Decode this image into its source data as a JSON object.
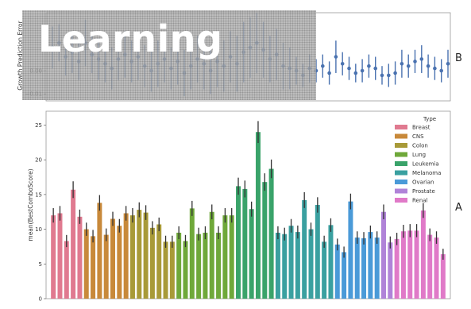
{
  "watermark": {
    "text": "Learning"
  },
  "chart_data": [
    {
      "panel": "B",
      "type": "scatter",
      "ylabel": "Growth Prediction Error",
      "ylim": [
        -0.013,
        0.025
      ],
      "yticks": [
        0.0,
        -0.01
      ],
      "ytick_labels": [
        "0.00",
        "−0.01"
      ],
      "color": "#4a72b0",
      "points": [
        {
          "y": 0.01,
          "err": 0.009
        },
        {
          "y": 0.012,
          "err": 0.008
        },
        {
          "y": 0.006,
          "err": 0.008
        },
        {
          "y": 0.008,
          "err": 0.009
        },
        {
          "y": 0.004,
          "err": 0.008
        },
        {
          "y": 0.012,
          "err": 0.01
        },
        {
          "y": 0.007,
          "err": 0.008
        },
        {
          "y": 0.005,
          "err": 0.009
        },
        {
          "y": 0.003,
          "err": 0.008
        },
        {
          "y": 0.001,
          "err": 0.009
        },
        {
          "y": 0.005,
          "err": 0.009
        },
        {
          "y": 0.007,
          "err": 0.01
        },
        {
          "y": 0.004,
          "err": 0.009
        },
        {
          "y": 0.006,
          "err": 0.01
        },
        {
          "y": 0.002,
          "err": 0.009
        },
        {
          "y": 0.0,
          "err": 0.009
        },
        {
          "y": 0.003,
          "err": 0.01
        },
        {
          "y": 0.005,
          "err": 0.01
        },
        {
          "y": 0.001,
          "err": 0.009
        },
        {
          "y": 0.004,
          "err": 0.01
        },
        {
          "y": -0.001,
          "err": 0.01
        },
        {
          "y": 0.002,
          "err": 0.01
        },
        {
          "y": 0.005,
          "err": 0.01
        },
        {
          "y": 0.003,
          "err": 0.011
        },
        {
          "y": 0.0,
          "err": 0.01
        },
        {
          "y": 0.004,
          "err": 0.011
        },
        {
          "y": 0.002,
          "err": 0.011
        },
        {
          "y": 0.006,
          "err": 0.011
        },
        {
          "y": 0.003,
          "err": 0.012
        },
        {
          "y": 0.008,
          "err": 0.013
        },
        {
          "y": 0.01,
          "err": 0.013
        },
        {
          "y": 0.012,
          "err": 0.013
        },
        {
          "y": 0.009,
          "err": 0.012
        },
        {
          "y": 0.005,
          "err": 0.01
        },
        {
          "y": 0.007,
          "err": 0.011
        },
        {
          "y": 0.002,
          "err": 0.01
        },
        {
          "y": 0.001,
          "err": 0.009
        },
        {
          "y": 0.0,
          "err": 0.006
        },
        {
          "y": -0.002,
          "err": 0.005
        },
        {
          "y": 0.001,
          "err": 0.006
        },
        {
          "y": 0.0,
          "err": 0.005
        },
        {
          "y": 0.002,
          "err": 0.005
        },
        {
          "y": -0.001,
          "err": 0.005
        },
        {
          "y": 0.006,
          "err": 0.007
        },
        {
          "y": 0.003,
          "err": 0.005
        },
        {
          "y": 0.001,
          "err": 0.005
        },
        {
          "y": -0.001,
          "err": 0.004
        },
        {
          "y": 0.0,
          "err": 0.005
        },
        {
          "y": 0.002,
          "err": 0.005
        },
        {
          "y": 0.001,
          "err": 0.005
        },
        {
          "y": -0.002,
          "err": 0.004
        },
        {
          "y": -0.002,
          "err": 0.005
        },
        {
          "y": -0.001,
          "err": 0.005
        },
        {
          "y": 0.003,
          "err": 0.006
        },
        {
          "y": 0.002,
          "err": 0.005
        },
        {
          "y": 0.004,
          "err": 0.005
        },
        {
          "y": 0.005,
          "err": 0.006
        },
        {
          "y": 0.002,
          "err": 0.005
        },
        {
          "y": 0.001,
          "err": 0.005
        },
        {
          "y": 0.0,
          "err": 0.005
        },
        {
          "y": 0.003,
          "err": 0.006
        }
      ]
    },
    {
      "panel": "A",
      "type": "bar",
      "ylabel": "mean(BestComboScore)",
      "ylim": [
        0,
        27
      ],
      "yticks": [
        0,
        5,
        10,
        15,
        20,
        25
      ],
      "legend": {
        "title": "Type",
        "placement": "top-right"
      },
      "groups": [
        {
          "name": "Breast",
          "color": "#e07a90",
          "values": [
            12.0,
            12.3,
            8.3,
            15.7,
            11.8
          ]
        },
        {
          "name": "CNS",
          "color": "#c8893a",
          "values": [
            10.0,
            9.0,
            13.8,
            9.2,
            11.5,
            10.5,
            12.3
          ]
        },
        {
          "name": "Colon",
          "color": "#a89a38",
          "values": [
            12.0,
            12.8,
            12.4,
            10.2,
            10.7,
            8.2,
            8.2
          ]
        },
        {
          "name": "Lung",
          "color": "#6fa83a",
          "values": [
            9.5,
            8.3,
            13.0,
            9.3,
            9.5,
            12.5,
            9.5,
            12.0,
            12.0
          ]
        },
        {
          "name": "Leukemia",
          "color": "#3aa36a",
          "values": [
            16.2,
            15.8,
            12.9,
            24.0,
            16.8,
            18.7
          ]
        },
        {
          "name": "Melanoma",
          "color": "#3aa0a0",
          "values": [
            9.5,
            9.3,
            10.5,
            9.6,
            14.2,
            10.0,
            13.5,
            8.2,
            10.6
          ]
        },
        {
          "name": "Ovarian",
          "color": "#4a9ad8",
          "values": [
            7.8,
            6.7,
            14.0,
            8.8,
            8.7,
            9.6,
            8.8
          ]
        },
        {
          "name": "Prostate",
          "color": "#b083d8",
          "values": [
            12.5,
            8.1
          ]
        },
        {
          "name": "Renal",
          "color": "#e07ac8",
          "values": [
            8.6,
            9.7,
            9.8,
            9.8,
            12.7,
            9.2,
            8.8,
            6.4
          ]
        }
      ]
    }
  ]
}
